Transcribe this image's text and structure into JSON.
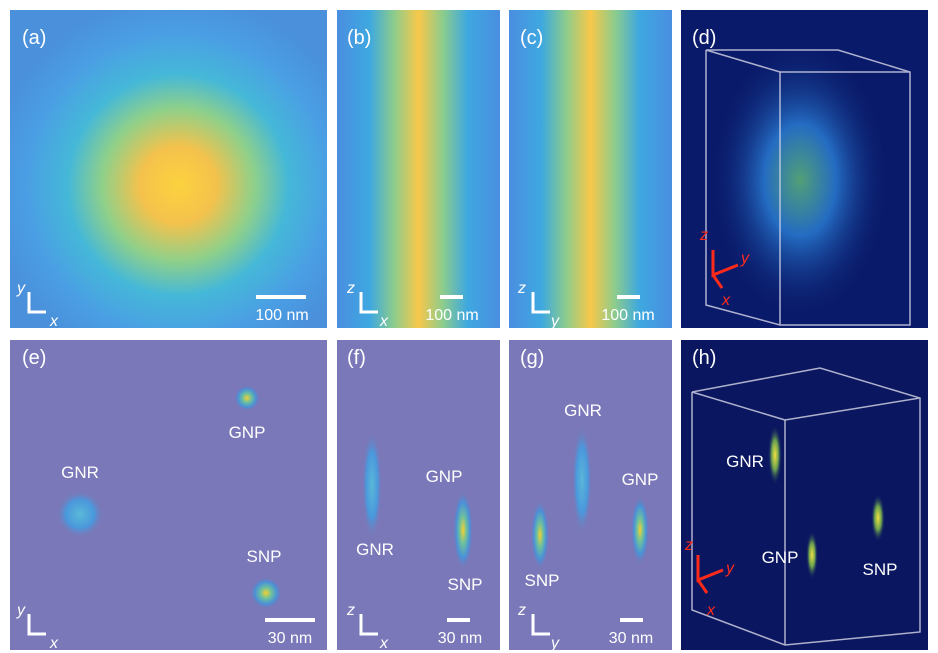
{
  "panels": [
    {
      "label": "(a)",
      "axes": [
        "y",
        "x"
      ],
      "scale_bar": "100 nm"
    },
    {
      "label": "(b)",
      "axes": [
        "z",
        "x"
      ],
      "scale_bar": "100 nm"
    },
    {
      "label": "(c)",
      "axes": [
        "z",
        "y"
      ],
      "scale_bar": "100 nm"
    },
    {
      "label": "(d)",
      "axes": [
        "z",
        "y",
        "x"
      ]
    },
    {
      "label": "(e)",
      "axes": [
        "y",
        "x"
      ],
      "scale_bar": "30 nm",
      "annotations": [
        "GNP",
        "GNR",
        "SNP"
      ]
    },
    {
      "label": "(f)",
      "axes": [
        "z",
        "x"
      ],
      "scale_bar": "30 nm",
      "annotations": [
        "GNR",
        "GNP",
        "SNP"
      ]
    },
    {
      "label": "(g)",
      "axes": [
        "z",
        "y"
      ],
      "scale_bar": "30 nm",
      "annotations": [
        "GNR",
        "GNP",
        "SNP"
      ]
    },
    {
      "label": "(h)",
      "axes": [
        "z",
        "y",
        "x"
      ],
      "annotations": [
        "GNR",
        "GNP",
        "SNP"
      ]
    }
  ]
}
